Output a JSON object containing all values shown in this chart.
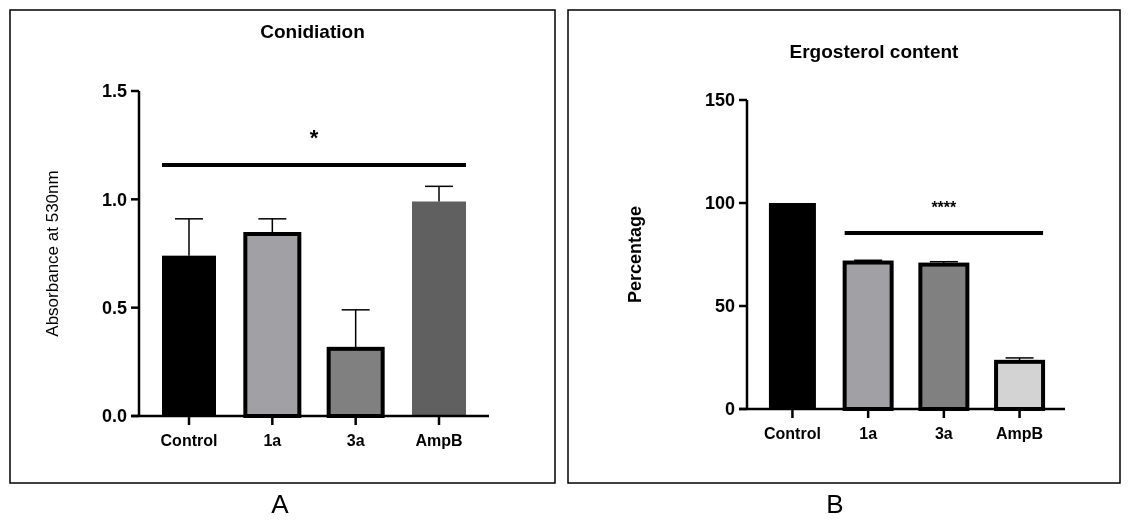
{
  "chart_data": [
    {
      "type": "bar",
      "title": "Conidiation",
      "ylabel": "Absorbance at 530nm",
      "categories": [
        "Control",
        "1a",
        "3a",
        "AmpB"
      ],
      "values": [
        0.74,
        0.84,
        0.31,
        0.99
      ],
      "colors": [
        "#000000",
        "#a0a0a5",
        "#808080",
        "#606060"
      ],
      "errors": [
        [
          0.74,
          0.91
        ],
        [
          0.84,
          0.91
        ],
        [
          0.31,
          0.49
        ],
        [
          0.99,
          1.06
        ]
      ],
      "ylim": [
        0,
        1.5
      ],
      "yticks": [
        {
          "value": 0,
          "label": "0.0"
        },
        {
          "value": 0.5,
          "label": "0.5"
        },
        {
          "value": 1,
          "label": "1.0"
        },
        {
          "value": 1.5,
          "label": "1.5"
        }
      ],
      "annotations": [
        "*",
        "A"
      ]
    },
    {
      "type": "bar",
      "title": "Ergosterol content",
      "ylabel": "Percentage",
      "categories": [
        "Control",
        "1a",
        "3a",
        "AmpB"
      ],
      "values": [
        100,
        71.1,
        70.1,
        22.9
      ],
      "colors": [
        "#000000",
        "#a0a0a5",
        "#808080",
        "#d3d3d3"
      ],
      "errors": [
        null,
        [
          71.1,
          72.2
        ],
        [
          70.1,
          71.5
        ],
        [
          22.9,
          24.8
        ]
      ],
      "ylim": [
        0,
        150
      ],
      "yticks": [
        0,
        50,
        100,
        150
      ],
      "annotations": [
        "****",
        "B"
      ]
    }
  ]
}
